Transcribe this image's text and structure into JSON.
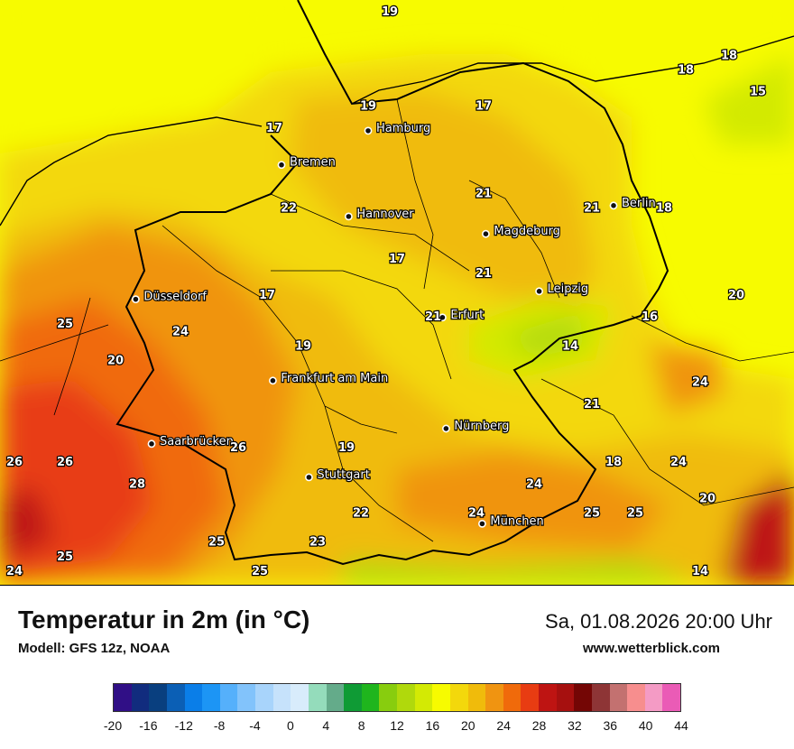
{
  "title": "Temperatur in 2m (in °C)",
  "model": "Modell: GFS 12z, NOAA",
  "datetime": "Sa, 01.08.2026 20:00 Uhr",
  "website": "www.wetterblick.com",
  "cities": [
    {
      "name": "Hamburg",
      "lon": 10.0,
      "lat": 53.55
    },
    {
      "name": "Bremen",
      "lon": 8.8,
      "lat": 53.08
    },
    {
      "name": "Hannover",
      "lon": 9.73,
      "lat": 52.37
    },
    {
      "name": "Berlin",
      "lon": 13.4,
      "lat": 52.52
    },
    {
      "name": "Magdeburg",
      "lon": 11.63,
      "lat": 52.13
    },
    {
      "name": "Leipzig",
      "lon": 12.37,
      "lat": 51.34
    },
    {
      "name": "Erfurt",
      "lon": 11.03,
      "lat": 50.98
    },
    {
      "name": "Düsseldorf",
      "lon": 6.78,
      "lat": 51.23
    },
    {
      "name": "Frankfurt am Main",
      "lon": 8.68,
      "lat": 50.11
    },
    {
      "name": "Nürnberg",
      "lon": 11.08,
      "lat": 49.45
    },
    {
      "name": "Saarbrücken",
      "lon": 7.0,
      "lat": 49.24
    },
    {
      "name": "Stuttgart",
      "lon": 9.18,
      "lat": 48.78
    },
    {
      "name": "München",
      "lon": 11.58,
      "lat": 48.14
    }
  ],
  "temperature_labels": [
    {
      "value": "19",
      "lon": 10.3,
      "lat": 55.2
    },
    {
      "value": "19",
      "lon": 10.0,
      "lat": 53.9
    },
    {
      "value": "17",
      "lon": 11.6,
      "lat": 53.9
    },
    {
      "value": "18",
      "lon": 14.4,
      "lat": 54.4
    },
    {
      "value": "18",
      "lon": 15.0,
      "lat": 54.6
    },
    {
      "value": "15",
      "lon": 15.4,
      "lat": 54.1
    },
    {
      "value": "17",
      "lon": 8.7,
      "lat": 53.6
    },
    {
      "value": "22",
      "lon": 8.9,
      "lat": 52.5
    },
    {
      "value": "21",
      "lon": 11.6,
      "lat": 52.7
    },
    {
      "value": "21",
      "lon": 13.1,
      "lat": 52.5
    },
    {
      "value": "18",
      "lon": 14.1,
      "lat": 52.5
    },
    {
      "value": "17",
      "lon": 10.4,
      "lat": 51.8
    },
    {
      "value": "21",
      "lon": 11.6,
      "lat": 51.6
    },
    {
      "value": "17",
      "lon": 8.6,
      "lat": 51.3
    },
    {
      "value": "20",
      "lon": 15.1,
      "lat": 51.3
    },
    {
      "value": "21",
      "lon": 10.9,
      "lat": 51.0
    },
    {
      "value": "16",
      "lon": 13.9,
      "lat": 51.0
    },
    {
      "value": "25",
      "lon": 5.8,
      "lat": 50.9
    },
    {
      "value": "24",
      "lon": 7.4,
      "lat": 50.8
    },
    {
      "value": "19",
      "lon": 9.1,
      "lat": 50.6
    },
    {
      "value": "14",
      "lon": 12.8,
      "lat": 50.6
    },
    {
      "value": "20",
      "lon": 6.5,
      "lat": 50.4
    },
    {
      "value": "24",
      "lon": 14.6,
      "lat": 50.1
    },
    {
      "value": "21",
      "lon": 13.1,
      "lat": 49.8
    },
    {
      "value": "26",
      "lon": 8.2,
      "lat": 49.2
    },
    {
      "value": "19",
      "lon": 9.7,
      "lat": 49.2
    },
    {
      "value": "26",
      "lon": 5.1,
      "lat": 49.0
    },
    {
      "value": "26",
      "lon": 5.8,
      "lat": 49.0
    },
    {
      "value": "18",
      "lon": 13.4,
      "lat": 49.0
    },
    {
      "value": "24",
      "lon": 14.3,
      "lat": 49.0
    },
    {
      "value": "28",
      "lon": 6.8,
      "lat": 48.7
    },
    {
      "value": "24",
      "lon": 12.3,
      "lat": 48.7
    },
    {
      "value": "20",
      "lon": 14.7,
      "lat": 48.5
    },
    {
      "value": "22",
      "lon": 9.9,
      "lat": 48.3
    },
    {
      "value": "24",
      "lon": 11.5,
      "lat": 48.3
    },
    {
      "value": "25",
      "lon": 13.1,
      "lat": 48.3
    },
    {
      "value": "25",
      "lon": 13.7,
      "lat": 48.3
    },
    {
      "value": "25",
      "lon": 7.9,
      "lat": 47.9
    },
    {
      "value": "23",
      "lon": 9.3,
      "lat": 47.9
    },
    {
      "value": "25",
      "lon": 5.8,
      "lat": 47.7
    },
    {
      "value": "24",
      "lon": 5.1,
      "lat": 47.5
    },
    {
      "value": "25",
      "lon": 8.5,
      "lat": 47.5
    },
    {
      "value": "14",
      "lon": 14.6,
      "lat": 47.5
    }
  ],
  "legend": {
    "colors": [
      "#300f86",
      "#112c7e",
      "#093f7f",
      "#0b5fb5",
      "#0a7ee8",
      "#1c95f5",
      "#55b0fb",
      "#82c3fb",
      "#a8d4fb",
      "#c6e2fb",
      "#d8ecfb",
      "#94dcbb",
      "#64ab8a",
      "#0f9b35",
      "#1fb51d",
      "#88cd0e",
      "#b0d90c",
      "#d3ea04",
      "#f7fb00",
      "#f3d80c",
      "#f0bb0b",
      "#f09411",
      "#f06a0b",
      "#e83c12",
      "#be1412",
      "#a6100f",
      "#740605",
      "#8e3536",
      "#c37170",
      "#f78e8e",
      "#f49bc5",
      "#ea5bb6"
    ],
    "ticks": [
      "-20",
      "-16",
      "-12",
      "-8",
      "-4",
      "0",
      "4",
      "8",
      "12",
      "16",
      "20",
      "24",
      "28",
      "32",
      "36",
      "40",
      "44"
    ]
  }
}
